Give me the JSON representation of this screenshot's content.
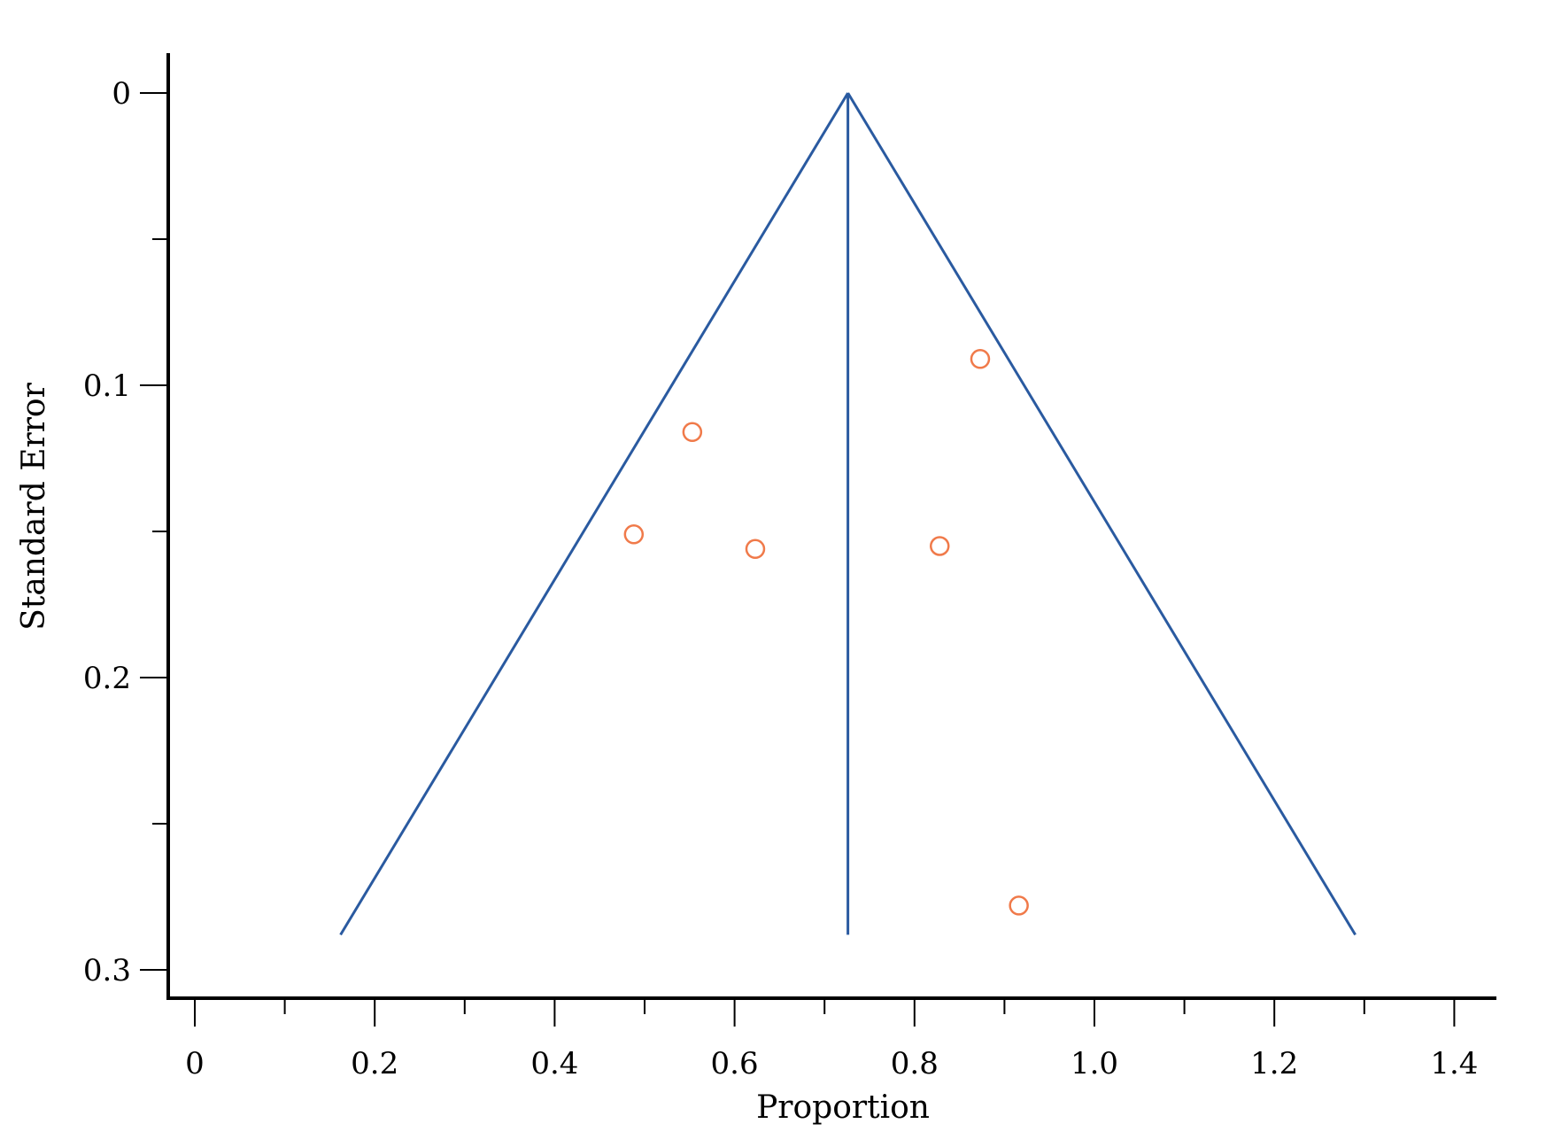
{
  "chart_data": {
    "type": "scatter",
    "title": "",
    "xlabel": "Proportion",
    "ylabel": "Standard Error",
    "xlim": [
      0,
      1.4
    ],
    "ylim": [
      0,
      0.3
    ],
    "y_inverted": true,
    "x_ticks": [
      "0",
      "0.2",
      "0.4",
      "0.6",
      "0.8",
      "1.0",
      "1.2",
      "1.4"
    ],
    "x_tick_values": [
      0,
      0.2,
      0.4,
      0.6,
      0.8,
      1.0,
      1.2,
      1.4
    ],
    "x_minor_ticks": [
      0.1,
      0.3,
      0.5,
      0.7,
      0.9,
      1.1,
      1.3
    ],
    "y_ticks": [
      "0",
      "0.1",
      "0.2",
      "0.3"
    ],
    "y_tick_values": [
      0,
      0.1,
      0.2,
      0.3
    ],
    "y_minor_ticks": [
      0.05,
      0.15,
      0.25
    ],
    "grid": false,
    "pooled_estimate": 0.726,
    "funnel": {
      "apex": {
        "x": 0.726,
        "y": 0
      },
      "left_base": {
        "x": 0.162,
        "y": 0.288
      },
      "right_base": {
        "x": 1.29,
        "y": 0.288
      },
      "center_base": {
        "x": 0.726,
        "y": 0.288
      }
    },
    "points": [
      {
        "x": 0.873,
        "y": 0.091
      },
      {
        "x": 0.553,
        "y": 0.116
      },
      {
        "x": 0.488,
        "y": 0.151
      },
      {
        "x": 0.623,
        "y": 0.156
      },
      {
        "x": 0.828,
        "y": 0.155
      },
      {
        "x": 0.916,
        "y": 0.278
      }
    ],
    "colors": {
      "funnel": "#2a5aa0",
      "points": "#f07a4a",
      "axis": "#000000"
    }
  }
}
